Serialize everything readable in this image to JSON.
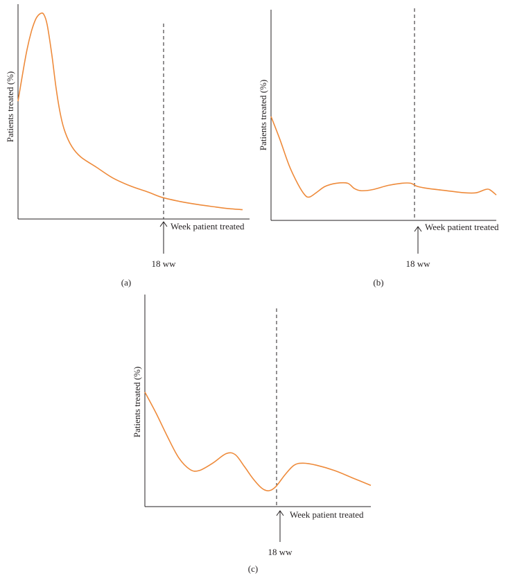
{
  "figure": {
    "colors": {
      "curve": "#ee8a3a",
      "axis": "#231f20",
      "marker": "#231f20"
    }
  },
  "chart_data": [
    {
      "type": "line",
      "panel_label": "(a)",
      "ylabel": "Patients treated (%)",
      "xlabel": "Week patient treated",
      "marker_label": "18 ww",
      "ylim": [
        0,
        100
      ],
      "xlim": [
        0,
        100
      ],
      "marker_x": 64,
      "grid": false,
      "series": [
        {
          "points": [
            [
              0,
              57
            ],
            [
              2,
              70
            ],
            [
              4,
              82
            ],
            [
              6,
              91
            ],
            [
              8,
              97
            ],
            [
              10,
              99.5
            ],
            [
              11.5,
              99
            ],
            [
              13,
              94
            ],
            [
              15,
              80
            ],
            [
              17,
              63
            ],
            [
              19,
              50
            ],
            [
              21,
              42
            ],
            [
              24,
              35
            ],
            [
              28,
              30
            ],
            [
              35,
              25
            ],
            [
              42,
              20
            ],
            [
              50,
              16
            ],
            [
              58,
              13
            ],
            [
              64,
              10.5
            ],
            [
              72,
              8.5
            ],
            [
              80,
              7
            ],
            [
              88,
              5.8
            ],
            [
              94,
              5
            ],
            [
              100,
              4.5
            ]
          ]
        }
      ]
    },
    {
      "type": "line",
      "panel_label": "(b)",
      "ylabel": "Patients treated (%)",
      "xlabel": "Week patient treated",
      "marker_label": "18 ww",
      "ylim": [
        0,
        100
      ],
      "xlim": [
        0,
        100
      ],
      "marker_x": 64,
      "grid": false,
      "series": [
        {
          "points": [
            [
              0,
              49
            ],
            [
              4,
              38
            ],
            [
              8,
              26
            ],
            [
              12,
              17
            ],
            [
              15,
              12
            ],
            [
              17,
              11
            ],
            [
              20,
              13
            ],
            [
              24,
              16
            ],
            [
              29,
              17.5
            ],
            [
              34,
              17.5
            ],
            [
              37,
              15
            ],
            [
              40,
              14
            ],
            [
              45,
              14.5
            ],
            [
              52,
              16.5
            ],
            [
              58,
              17.5
            ],
            [
              62,
              17.5
            ],
            [
              65,
              16
            ],
            [
              70,
              15
            ],
            [
              78,
              14
            ],
            [
              86,
              13
            ],
            [
              91,
              13
            ],
            [
              95,
              14.5
            ],
            [
              97,
              14.5
            ],
            [
              100,
              12
            ]
          ]
        }
      ]
    },
    {
      "type": "line",
      "panel_label": "(c)",
      "ylabel": "Patients treated (%)",
      "xlabel": "Week patient treated",
      "marker_label": "18 ww",
      "ylim": [
        0,
        100
      ],
      "xlim": [
        0,
        100
      ],
      "marker_x": 59,
      "grid": false,
      "series": [
        {
          "points": [
            [
              0,
              54
            ],
            [
              5,
              44
            ],
            [
              10,
              33
            ],
            [
              15,
              23
            ],
            [
              20,
              17.5
            ],
            [
              24,
              17
            ],
            [
              30,
              20.5
            ],
            [
              36,
              25
            ],
            [
              40,
              24.5
            ],
            [
              44,
              19
            ],
            [
              48,
              13
            ],
            [
              52,
              8.5
            ],
            [
              55,
              7.5
            ],
            [
              58,
              9.5
            ],
            [
              62,
              15
            ],
            [
              66,
              19.5
            ],
            [
              70,
              20.5
            ],
            [
              76,
              19.5
            ],
            [
              84,
              17
            ],
            [
              92,
              13.5
            ],
            [
              100,
              10
            ]
          ]
        }
      ]
    }
  ]
}
